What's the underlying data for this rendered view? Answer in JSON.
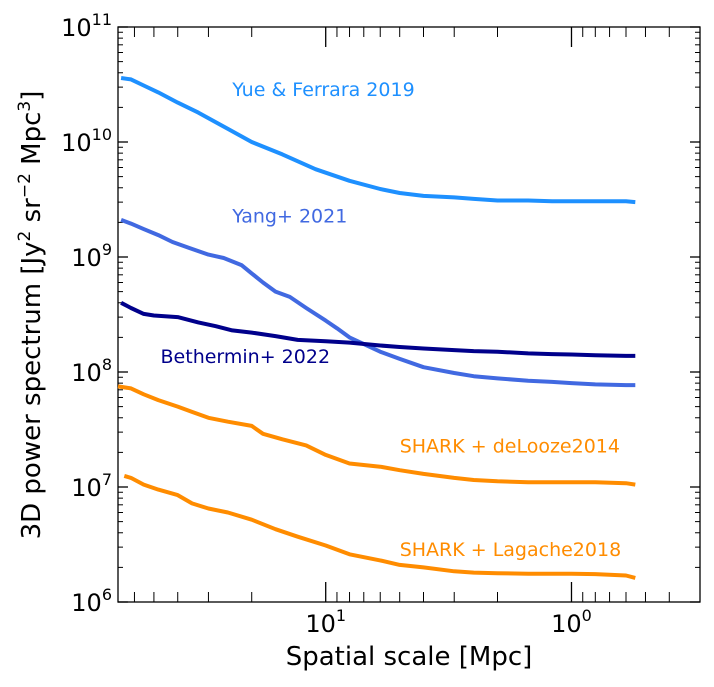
{
  "chart_data": {
    "type": "line",
    "title": "",
    "xlabel": "Spatial scale [Mpc]",
    "ylabel_parts": [
      "3D power spectrum [Jy",
      "2",
      " sr",
      "−2",
      " Mpc",
      "3",
      "]"
    ],
    "x_scale": "log",
    "y_scale": "log",
    "x_direction": "decreasing",
    "xlim": [
      70,
      0.3
    ],
    "ylim": [
      1000000,
      100000000000
    ],
    "x_ticks": [
      {
        "value": 10,
        "base": "10",
        "exp": "1"
      },
      {
        "value": 1,
        "base": "10",
        "exp": "0"
      }
    ],
    "y_ticks": [
      {
        "value": 1000000,
        "base": "10",
        "exp": "6"
      },
      {
        "value": 10000000,
        "base": "10",
        "exp": "7"
      },
      {
        "value": 100000000,
        "base": "10",
        "exp": "8"
      },
      {
        "value": 1000000000,
        "base": "10",
        "exp": "9"
      },
      {
        "value": 10000000000,
        "base": "10",
        "exp": "10"
      },
      {
        "value": 100000000000,
        "base": "10",
        "exp": "11"
      }
    ],
    "series": [
      {
        "name": "Yue & Ferrara 2019",
        "color": "#1e90ff",
        "label_at": [
          24,
          25000000000
        ],
        "x": [
          68,
          62,
          55,
          48,
          40,
          33,
          25,
          20,
          15,
          11,
          8,
          6,
          5,
          4,
          3,
          2.5,
          2,
          1.5,
          1.2,
          1.0,
          0.8,
          0.6,
          0.55
        ],
        "values": [
          36000000000,
          35000000000,
          31000000000,
          27000000000,
          22000000000,
          18000000000,
          13000000000,
          10000000000,
          7800000000,
          5800000000,
          4600000000,
          3900000000,
          3600000000,
          3400000000,
          3300000000,
          3200000000,
          3100000000,
          3100000000,
          3050000000,
          3050000000,
          3050000000,
          3050000000,
          3000000000
        ]
      },
      {
        "name": "Yang+ 2021",
        "color": "#4169e1",
        "label_at": [
          24,
          2000000000
        ],
        "x": [
          68,
          62,
          55,
          48,
          42,
          36,
          30,
          26,
          22,
          20,
          18,
          16,
          14,
          12,
          10,
          9,
          8,
          7,
          6,
          5,
          4,
          3,
          2.5,
          2,
          1.5,
          1.2,
          1.0,
          0.8,
          0.6,
          0.55
        ],
        "values": [
          2100000000,
          1950000000,
          1750000000,
          1550000000,
          1350000000,
          1200000000,
          1050000000,
          980000000,
          850000000,
          720000000,
          600000000,
          500000000,
          450000000,
          360000000,
          280000000,
          240000000,
          200000000,
          175000000,
          150000000,
          130000000,
          110000000,
          98000000,
          92000000,
          88000000,
          84000000,
          82000000,
          80000000,
          78000000,
          77000000,
          77000000
        ]
      },
      {
        "name": "Bethermin+ 2022",
        "color": "#00008b",
        "label_at": [
          47,
          120000000
        ],
        "x": [
          68,
          62,
          55,
          50,
          40,
          33,
          28,
          24,
          20,
          16,
          13,
          10,
          8,
          6,
          5,
          4,
          3,
          2.5,
          2,
          1.5,
          1.2,
          1.0,
          0.8,
          0.6,
          0.55
        ],
        "values": [
          400000000,
          360000000,
          320000000,
          310000000,
          300000000,
          270000000,
          250000000,
          230000000,
          220000000,
          205000000,
          190000000,
          185000000,
          180000000,
          170000000,
          165000000,
          160000000,
          155000000,
          152000000,
          150000000,
          145000000,
          143000000,
          142000000,
          140000000,
          138000000,
          138000000
        ]
      },
      {
        "name": "SHARK + deLooze2014",
        "color": "#ff8c00",
        "label_at": [
          5,
          20000000
        ],
        "x": [
          70,
          62,
          55,
          48,
          40,
          35,
          30,
          25,
          20,
          18,
          15,
          12,
          10,
          8,
          6,
          5,
          4,
          3,
          2.5,
          2,
          1.5,
          1.2,
          1.0,
          0.8,
          0.6,
          0.55
        ],
        "values": [
          75000000,
          72000000,
          64000000,
          57000000,
          50000000,
          45000000,
          40000000,
          37000000,
          34000000,
          29000000,
          26000000,
          23000000,
          19000000,
          16000000,
          15000000,
          14000000,
          13000000,
          12000000,
          11500000,
          11200000,
          11000000,
          11000000,
          11000000,
          11000000,
          10800000,
          10500000
        ]
      },
      {
        "name": "SHARK + Lagache2018",
        "color": "#ff8c00",
        "label_at": [
          5,
          2500000
        ],
        "x": [
          66,
          62,
          55,
          48,
          40,
          35,
          30,
          25,
          20,
          16,
          13,
          10,
          8,
          6,
          5,
          4,
          3,
          2.5,
          2,
          1.5,
          1.2,
          1.0,
          0.8,
          0.6,
          0.55
        ],
        "values": [
          12500000,
          12000000,
          10500000,
          9500000,
          8500000,
          7200000,
          6500000,
          6000000,
          5200000,
          4300000,
          3700000,
          3100000,
          2600000,
          2300000,
          2100000,
          2000000,
          1850000,
          1800000,
          1780000,
          1760000,
          1760000,
          1760000,
          1750000,
          1700000,
          1620000
        ]
      }
    ]
  }
}
